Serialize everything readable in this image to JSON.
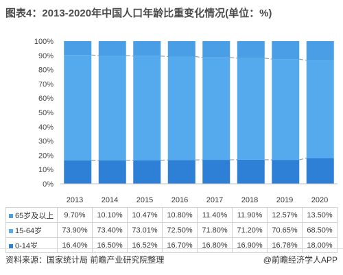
{
  "title": "图表4：2013-2020年中国人口年龄比重变化情况(单位：%)",
  "source": "资料来源：国家统计局 前瞻产业研究院整理",
  "brand": "@前瞻经济学人APP",
  "colors": {
    "age65": "#4a9ee6",
    "age15_64": "#55aaee",
    "age0_14": "#2e7fd6",
    "grid": "#999999"
  },
  "chart_data": {
    "type": "bar",
    "stacked": true,
    "categories": [
      "2013",
      "2014",
      "2015",
      "2016",
      "2017",
      "2018",
      "2019",
      "2020"
    ],
    "ylim": [
      0,
      100
    ],
    "yticks": [
      "0%",
      "10%",
      "20%",
      "30%",
      "40%",
      "50%",
      "60%",
      "70%",
      "80%",
      "90%",
      "100%"
    ],
    "series": [
      {
        "name": "0-14岁",
        "values": [
          16.4,
          16.5,
          16.52,
          16.7,
          16.8,
          16.9,
          16.78,
          18.0
        ],
        "labels": [
          "16.40%",
          "16.50%",
          "16.52%",
          "16.70%",
          "16.80%",
          "16.90%",
          "16.78%",
          "18.00%"
        ]
      },
      {
        "name": "15-64岁",
        "values": [
          73.9,
          73.4,
          73.01,
          72.5,
          71.8,
          71.2,
          70.65,
          68.5
        ],
        "labels": [
          "73.90%",
          "73.40%",
          "73.01%",
          "72.50%",
          "71.80%",
          "71.20%",
          "70.65%",
          "68.50%"
        ]
      },
      {
        "name": "65岁及以上",
        "values": [
          9.7,
          10.1,
          10.47,
          10.8,
          11.4,
          11.9,
          12.57,
          13.5
        ],
        "labels": [
          "9.70%",
          "10.10%",
          "10.47%",
          "10.80%",
          "11.40%",
          "11.90%",
          "12.57%",
          "13.50%"
        ]
      }
    ]
  }
}
